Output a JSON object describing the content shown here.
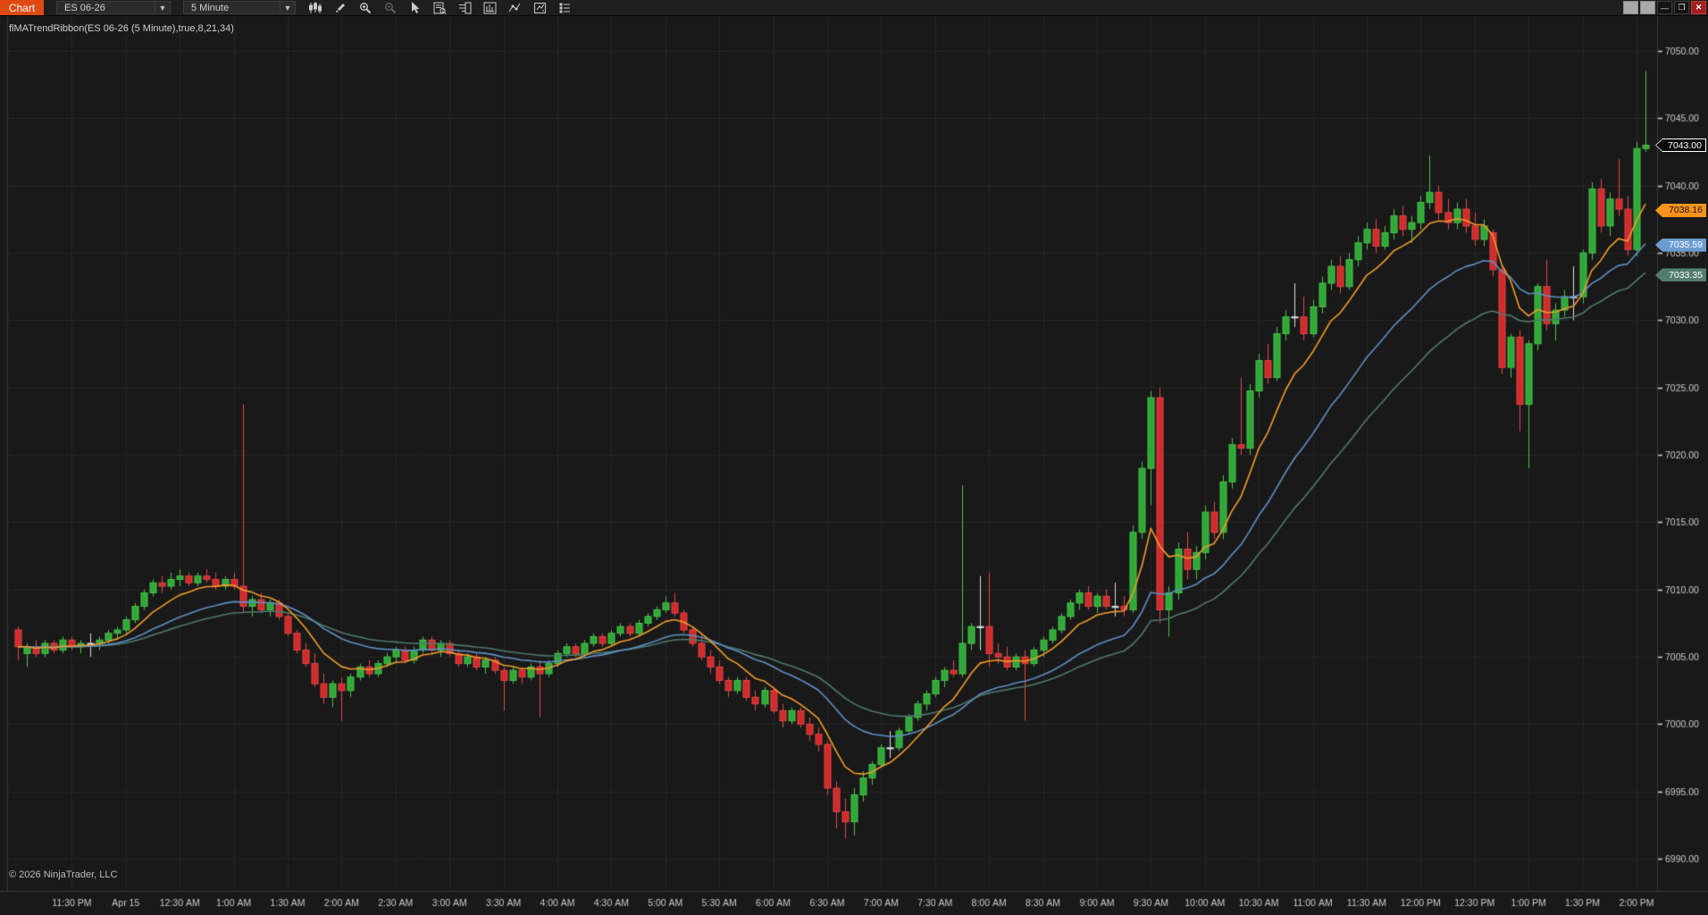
{
  "window": {
    "tab_label": "Chart",
    "controls": [
      {
        "name": "window-extra-button-1",
        "glyph": "",
        "style": "blank"
      },
      {
        "name": "window-extra-button-2",
        "glyph": "",
        "style": "blank"
      },
      {
        "name": "minimize-button",
        "glyph": "—",
        "style": "dark"
      },
      {
        "name": "restore-button",
        "glyph": "❐",
        "style": "dark"
      },
      {
        "name": "close-button",
        "glyph": "✕",
        "style": "close"
      }
    ]
  },
  "toolbar": {
    "instrument": "ES 06-26",
    "interval": "5 Minute",
    "icons": [
      {
        "name": "candlestick-style-icon",
        "dim": false
      },
      {
        "name": "drawing-tools-icon",
        "dim": false
      },
      {
        "name": "zoom-in-icon",
        "dim": false
      },
      {
        "name": "zoom-out-icon",
        "dim": true
      },
      {
        "name": "pointer-icon",
        "dim": false
      },
      {
        "name": "data-box-icon",
        "dim": false
      },
      {
        "name": "panel-grid-icon",
        "dim": false
      },
      {
        "name": "bar-analysis-icon",
        "dim": false
      },
      {
        "name": "indicators-icon",
        "dim": false
      },
      {
        "name": "chart-template-icon",
        "dim": false
      },
      {
        "name": "list-settings-icon",
        "dim": false
      }
    ]
  },
  "indicator_label": "flMATrendRibbon(ES 06-26 (5 Minute),true,8,21,34)",
  "copyright": "© 2026 NinjaTrader, LLC",
  "colors": {
    "plot_bg": "#191919",
    "grid": "#252525",
    "border": "#3a3a3a",
    "axis_text": "#c9c9c9",
    "up_fill": "#2fa838",
    "up_stroke": "#4bc24b",
    "down_fill": "#d22b2b",
    "down_stroke": "#e14747",
    "doji": "#dcdcdc",
    "ema8": "#ef9b2c",
    "ema21": "#5e8fc4",
    "ema34": "#4f7a6d"
  },
  "chart_data": {
    "type": "candlestick",
    "symbol": "ES 06-26",
    "interval": "5 Minute",
    "title": "flMATrendRibbon(ES 06-26 (5 Minute),true,8,21,34)",
    "indicator": {
      "name": "flMATrendRibbon",
      "params": [
        true,
        8,
        21,
        34
      ],
      "overlays": [
        {
          "label": "EMA 8",
          "period": 8,
          "color": "#ef9b2c",
          "last_value": 7038.16
        },
        {
          "label": "EMA 21",
          "period": 21,
          "color": "#5e8fc4",
          "last_value": 7035.59
        },
        {
          "label": "EMA 34",
          "period": 34,
          "color": "#4f7a6d",
          "last_value": 7033.35
        }
      ]
    },
    "last_price": 7043.0,
    "axes": {
      "price_tick_step": 5,
      "price_ticks": [
        7050,
        7045,
        7040,
        7035,
        7030,
        7025,
        7020,
        7015,
        7010,
        7005,
        7000,
        6995,
        6990
      ],
      "y_price_at_top": 7052.59,
      "y_price_at_bottom": 6987.62,
      "time_label_first_index": 6,
      "time_label_step": 6,
      "time_labels": [
        "11:30 PM",
        "Apr 15",
        "12:30 AM",
        "1:00 AM",
        "1:30 AM",
        "2:00 AM",
        "2:30 AM",
        "3:00 AM",
        "3:30 AM",
        "4:00 AM",
        "4:30 AM",
        "5:00 AM",
        "5:30 AM",
        "6:00 AM",
        "6:30 AM",
        "7:00 AM",
        "7:30 AM",
        "8:00 AM",
        "8:30 AM",
        "9:00 AM",
        "9:30 AM",
        "10:00 AM",
        "10:30 AM",
        "11:00 AM",
        "11:30 AM",
        "12:00 PM",
        "12:30 PM",
        "1:00 PM",
        "1:30 PM",
        "2:00 PM"
      ]
    },
    "markers": [
      {
        "name": "last-price-marker",
        "label": "7043.00",
        "price": 7043.0,
        "bg": "#0a0a0a",
        "fg": "#ffffff",
        "border": "#ffffff"
      },
      {
        "name": "ema8-price-marker",
        "label": "7038.16",
        "price": 7038.16,
        "bg": "#f7941d",
        "fg": "#1a1000",
        "border": "#f7941d"
      },
      {
        "name": "ema21-price-marker",
        "label": "7035.59",
        "price": 7035.59,
        "bg": "#6b9bd1",
        "fg": "#ffffff",
        "border": "#6b9bd1"
      },
      {
        "name": "ema34-price-marker",
        "label": "7033.35",
        "price": 7033.35,
        "bg": "#527d6e",
        "fg": "#ffffff",
        "border": "#527d6e"
      }
    ],
    "candles": [
      [
        7007.0,
        7007.25,
        7004.75,
        7005.75
      ],
      [
        7005.25,
        7006.0,
        7004.25,
        7005.75
      ],
      [
        7005.75,
        7006.25,
        7005.0,
        7005.25
      ],
      [
        7005.25,
        7006.25,
        7005.0,
        7006.0
      ],
      [
        7006.0,
        7006.25,
        7005.25,
        7005.5
      ],
      [
        7005.5,
        7006.5,
        7005.25,
        7006.25
      ],
      [
        7006.25,
        7006.5,
        7005.5,
        7005.75
      ],
      [
        7005.75,
        7006.25,
        7005.25,
        7006.0
      ],
      [
        7006.0,
        7006.75,
        7005.0,
        7006.0
      ],
      [
        7006.0,
        7006.5,
        7005.5,
        7006.25
      ],
      [
        7006.25,
        7007.0,
        7006.0,
        7006.75
      ],
      [
        7006.75,
        7007.25,
        7006.25,
        7007.0
      ],
      [
        7007.0,
        7008.0,
        7006.75,
        7007.75
      ],
      [
        7007.75,
        7009.0,
        7007.5,
        7008.75
      ],
      [
        7008.75,
        7010.0,
        7008.5,
        7009.75
      ],
      [
        7009.75,
        7010.75,
        7009.5,
        7010.5
      ],
      [
        7010.5,
        7011.0,
        7009.75,
        7010.25
      ],
      [
        7010.25,
        7011.25,
        7010.0,
        7010.75
      ],
      [
        7010.75,
        7011.5,
        7010.25,
        7011.0
      ],
      [
        7011.0,
        7011.25,
        7010.25,
        7010.5
      ],
      [
        7010.5,
        7011.25,
        7010.25,
        7011.0
      ],
      [
        7011.0,
        7011.5,
        7010.5,
        7010.75
      ],
      [
        7010.75,
        7011.25,
        7010.0,
        7010.25
      ],
      [
        7010.25,
        7011.0,
        7010.0,
        7010.75
      ],
      [
        7010.75,
        7011.25,
        7010.0,
        7010.25
      ],
      [
        7010.25,
        7023.75,
        7008.25,
        7008.75
      ],
      [
        7008.75,
        7009.5,
        7008.0,
        7009.25
      ],
      [
        7009.25,
        7009.75,
        7008.25,
        7008.5
      ],
      [
        7008.5,
        7009.25,
        7008.0,
        7009.0
      ],
      [
        7009.0,
        7009.25,
        7007.75,
        7008.0
      ],
      [
        7008.0,
        7008.25,
        7006.5,
        7006.75
      ],
      [
        7006.75,
        7007.0,
        7005.25,
        7005.5
      ],
      [
        7005.5,
        7006.0,
        7004.25,
        7004.5
      ],
      [
        7004.5,
        7005.25,
        7002.75,
        7003.0
      ],
      [
        7003.0,
        7003.75,
        7001.5,
        7002.0
      ],
      [
        7002.0,
        7003.25,
        7001.25,
        7003.0
      ],
      [
        7003.0,
        7003.5,
        7000.25,
        7002.5
      ],
      [
        7002.5,
        7003.75,
        7002.0,
        7003.5
      ],
      [
        7003.5,
        7004.5,
        7003.25,
        7004.25
      ],
      [
        7004.25,
        7004.75,
        7003.5,
        7003.75
      ],
      [
        7003.75,
        7004.75,
        7003.5,
        7004.5
      ],
      [
        7004.5,
        7005.25,
        7004.25,
        7005.0
      ],
      [
        7005.0,
        7005.75,
        7004.5,
        7005.5
      ],
      [
        7005.5,
        7005.75,
        7004.5,
        7004.75
      ],
      [
        7004.75,
        7005.75,
        7004.5,
        7005.5
      ],
      [
        7005.5,
        7006.5,
        7005.25,
        7006.25
      ],
      [
        7006.25,
        7006.5,
        7005.25,
        7005.5
      ],
      [
        7005.5,
        7006.25,
        7005.0,
        7006.0
      ],
      [
        7006.0,
        7006.25,
        7005.0,
        7005.25
      ],
      [
        7005.25,
        7005.5,
        7004.25,
        7004.5
      ],
      [
        7004.5,
        7005.25,
        7004.25,
        7005.0
      ],
      [
        7005.0,
        7005.25,
        7004.0,
        7004.25
      ],
      [
        7004.25,
        7005.0,
        7003.75,
        7004.75
      ],
      [
        7004.75,
        7005.0,
        7003.75,
        7004.0
      ],
      [
        7004.0,
        7004.25,
        7001.0,
        7003.25
      ],
      [
        7003.25,
        7004.25,
        7003.0,
        7004.0
      ],
      [
        7004.0,
        7004.25,
        7003.0,
        7003.5
      ],
      [
        7003.5,
        7004.5,
        7003.25,
        7004.25
      ],
      [
        7004.25,
        7004.75,
        7000.5,
        7003.75
      ],
      [
        7003.75,
        7004.75,
        7003.5,
        7004.5
      ],
      [
        7004.5,
        7005.5,
        7004.25,
        7005.25
      ],
      [
        7005.25,
        7006.0,
        7005.0,
        7005.75
      ],
      [
        7005.75,
        7006.0,
        7005.0,
        7005.25
      ],
      [
        7005.25,
        7006.25,
        7005.0,
        7006.0
      ],
      [
        7006.0,
        7006.75,
        7005.75,
        7006.5
      ],
      [
        7006.5,
        7006.75,
        7005.75,
        7006.0
      ],
      [
        7006.0,
        7007.0,
        7005.75,
        7006.75
      ],
      [
        7006.75,
        7007.5,
        7006.5,
        7007.25
      ],
      [
        7007.25,
        7007.5,
        7006.5,
        7006.75
      ],
      [
        7006.75,
        7007.75,
        7006.5,
        7007.5
      ],
      [
        7007.5,
        7008.25,
        7007.25,
        7008.0
      ],
      [
        7008.0,
        7008.75,
        7007.75,
        7008.5
      ],
      [
        7008.5,
        7009.5,
        7008.25,
        7009.0
      ],
      [
        7009.0,
        7009.75,
        7008.0,
        7008.25
      ],
      [
        7008.25,
        7008.5,
        7006.75,
        7007.0
      ],
      [
        7007.0,
        7007.25,
        7005.75,
        7006.0
      ],
      [
        7006.0,
        7006.75,
        7004.75,
        7005.0
      ],
      [
        7005.0,
        7005.5,
        7003.75,
        7004.25
      ],
      [
        7004.25,
        7004.75,
        7003.0,
        7003.25
      ],
      [
        7003.25,
        7003.5,
        7002.0,
        7002.5
      ],
      [
        7002.5,
        7003.5,
        7002.25,
        7003.25
      ],
      [
        7003.25,
        7003.5,
        7001.75,
        7002.0
      ],
      [
        7002.0,
        7002.5,
        7001.0,
        7001.5
      ],
      [
        7001.5,
        7002.75,
        7001.25,
        7002.5
      ],
      [
        7002.5,
        7002.75,
        7000.75,
        7001.0
      ],
      [
        7001.0,
        7001.5,
        6999.75,
        7000.25
      ],
      [
        7000.25,
        7001.25,
        7000.0,
        7001.0
      ],
      [
        7001.0,
        7001.25,
        6999.75,
        7000.0
      ],
      [
        7000.0,
        7000.5,
        6998.75,
        6999.25
      ],
      [
        6999.25,
        6999.75,
        6998.0,
        6998.5
      ],
      [
        6998.5,
        6998.75,
        6994.75,
        6995.25
      ],
      [
        6995.25,
        6995.75,
        6992.25,
        6993.5
      ],
      [
        6993.5,
        6994.5,
        6991.5,
        6992.75
      ],
      [
        6992.75,
        6995.25,
        6991.75,
        6994.75
      ],
      [
        6994.75,
        6996.5,
        6994.25,
        6996.0
      ],
      [
        6996.0,
        6997.25,
        6995.5,
        6997.0
      ],
      [
        6997.0,
        6998.5,
        6996.75,
        6998.25
      ],
      [
        6998.25,
        6999.5,
        6997.5,
        6998.25
      ],
      [
        6998.25,
        6999.75,
        6998.0,
        6999.5
      ],
      [
        6999.5,
        7000.75,
        6999.25,
        7000.5
      ],
      [
        7000.5,
        7001.75,
        7000.25,
        7001.5
      ],
      [
        7001.5,
        7002.5,
        7001.0,
        7002.25
      ],
      [
        7002.25,
        7003.5,
        7002.0,
        7003.25
      ],
      [
        7003.25,
        7004.25,
        7002.75,
        7004.0
      ],
      [
        7004.0,
        7004.75,
        7003.5,
        7003.75
      ],
      [
        7003.75,
        7017.75,
        7003.5,
        7006.0
      ],
      [
        7006.0,
        7007.5,
        7005.5,
        7007.25
      ],
      [
        7007.25,
        7011.0,
        7005.5,
        7007.25
      ],
      [
        7007.25,
        7011.25,
        7004.25,
        7005.25
      ],
      [
        7005.25,
        7006.0,
        7004.5,
        7005.0
      ],
      [
        7005.0,
        7005.75,
        7004.0,
        7004.25
      ],
      [
        7004.25,
        7005.25,
        7004.0,
        7005.0
      ],
      [
        7005.0,
        7005.5,
        7000.25,
        7004.5
      ],
      [
        7004.5,
        7005.75,
        7004.25,
        7005.5
      ],
      [
        7005.5,
        7006.5,
        7005.0,
        7006.25
      ],
      [
        7006.25,
        7007.25,
        7006.0,
        7007.0
      ],
      [
        7007.0,
        7008.25,
        7006.75,
        7008.0
      ],
      [
        7008.0,
        7009.25,
        7007.75,
        7009.0
      ],
      [
        7009.0,
        7010.0,
        7008.5,
        7009.75
      ],
      [
        7009.75,
        7010.25,
        7008.5,
        7008.75
      ],
      [
        7008.75,
        7009.75,
        7008.25,
        7009.5
      ],
      [
        7009.5,
        7010.0,
        7008.5,
        7008.75
      ],
      [
        7008.75,
        7010.5,
        7008.0,
        7008.75
      ],
      [
        7008.75,
        7009.5,
        7008.0,
        7008.5
      ],
      [
        7008.5,
        7014.75,
        7008.25,
        7014.25
      ],
      [
        7014.25,
        7019.5,
        7013.75,
        7019.0
      ],
      [
        7019.0,
        7024.75,
        7016.25,
        7024.25
      ],
      [
        7024.25,
        7025.0,
        7007.5,
        7008.5
      ],
      [
        7008.5,
        7010.25,
        7006.5,
        7009.75
      ],
      [
        7009.75,
        7013.5,
        7009.25,
        7013.0
      ],
      [
        7013.0,
        7014.25,
        7010.75,
        7011.5
      ],
      [
        7011.5,
        7013.25,
        7010.75,
        7012.75
      ],
      [
        7012.75,
        7016.25,
        7012.25,
        7015.75
      ],
      [
        7015.75,
        7016.5,
        7013.75,
        7014.25
      ],
      [
        7014.25,
        7018.5,
        7013.75,
        7018.0
      ],
      [
        7018.0,
        7021.25,
        7017.5,
        7020.75
      ],
      [
        7020.75,
        7025.75,
        7020.0,
        7020.5
      ],
      [
        7020.5,
        7025.25,
        7020.0,
        7024.75
      ],
      [
        7024.75,
        7027.5,
        7024.25,
        7027.0
      ],
      [
        7027.0,
        7028.25,
        7025.25,
        7025.75
      ],
      [
        7025.75,
        7029.5,
        7025.5,
        7029.0
      ],
      [
        7029.0,
        7030.75,
        7028.5,
        7030.25
      ],
      [
        7030.25,
        7032.75,
        7029.5,
        7030.25
      ],
      [
        7030.25,
        7031.75,
        7028.5,
        7029.0
      ],
      [
        7029.0,
        7031.5,
        7028.75,
        7031.0
      ],
      [
        7031.0,
        7033.25,
        7030.5,
        7032.75
      ],
      [
        7032.75,
        7034.5,
        7032.25,
        7034.0
      ],
      [
        7034.0,
        7034.75,
        7032.0,
        7032.5
      ],
      [
        7032.5,
        7035.0,
        7032.25,
        7034.5
      ],
      [
        7034.5,
        7036.25,
        7034.0,
        7035.75
      ],
      [
        7035.75,
        7037.25,
        7035.25,
        7036.75
      ],
      [
        7036.75,
        7037.5,
        7035.0,
        7035.5
      ],
      [
        7035.5,
        7037.0,
        7035.25,
        7036.5
      ],
      [
        7036.5,
        7038.25,
        7036.0,
        7037.75
      ],
      [
        7037.75,
        7038.5,
        7036.25,
        7036.75
      ],
      [
        7036.75,
        7037.75,
        7035.75,
        7037.25
      ],
      [
        7037.25,
        7039.25,
        7036.75,
        7038.75
      ],
      [
        7038.75,
        7042.25,
        7038.25,
        7039.5
      ],
      [
        7039.5,
        7040.0,
        7037.5,
        7038.0
      ],
      [
        7038.0,
        7039.0,
        7036.75,
        7037.25
      ],
      [
        7037.25,
        7038.75,
        7036.75,
        7038.25
      ],
      [
        7038.25,
        7039.0,
        7036.5,
        7037.0
      ],
      [
        7037.0,
        7038.0,
        7035.5,
        7036.0
      ],
      [
        7036.0,
        7037.5,
        7035.5,
        7037.0
      ],
      [
        7036.5,
        7036.75,
        7033.25,
        7033.75
      ],
      [
        7033.75,
        7034.0,
        7026.0,
        7026.5
      ],
      [
        7026.5,
        7029.0,
        7025.75,
        7028.75
      ],
      [
        7028.75,
        7029.25,
        7021.75,
        7023.75
      ],
      [
        7023.75,
        7028.5,
        7019.0,
        7028.25
      ],
      [
        7028.25,
        7032.75,
        7027.75,
        7032.5
      ],
      [
        7032.5,
        7034.5,
        7029.25,
        7029.75
      ],
      [
        7029.75,
        7031.25,
        7028.5,
        7030.75
      ],
      [
        7030.75,
        7032.25,
        7030.25,
        7031.75
      ],
      [
        7031.75,
        7034.0,
        7030.0,
        7031.75
      ],
      [
        7031.75,
        7035.25,
        7031.25,
        7035.0
      ],
      [
        7035.0,
        7040.25,
        7034.5,
        7039.75
      ],
      [
        7039.75,
        7040.5,
        7036.5,
        7037.0
      ],
      [
        7037.0,
        7039.5,
        7036.25,
        7039.0
      ],
      [
        7039.0,
        7042.0,
        7037.75,
        7038.25
      ],
      [
        7038.25,
        7039.25,
        7034.75,
        7035.25
      ],
      [
        7035.25,
        7043.25,
        7034.75,
        7042.75
      ],
      [
        7042.75,
        7048.5,
        7042.5,
        7043.0
      ]
    ]
  }
}
